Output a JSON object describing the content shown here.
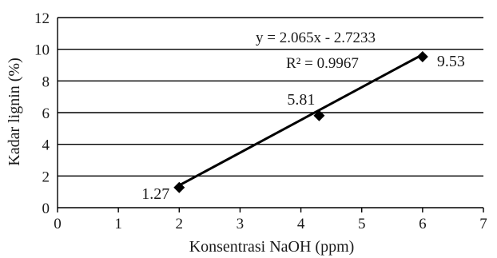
{
  "chart_data": {
    "type": "scatter",
    "xlabel": "Konsentrasi NaOH  (ppm)",
    "ylabel": "Kadar lignin  (%)",
    "xlim": [
      0,
      7
    ],
    "ylim": [
      0,
      12
    ],
    "x_ticks": [
      0,
      1,
      2,
      3,
      4,
      5,
      6,
      7
    ],
    "y_ticks": [
      0,
      2,
      4,
      6,
      8,
      10,
      12
    ],
    "grid": "horizontal",
    "points": [
      {
        "x": 2,
        "y": 1.27,
        "label": "1.27"
      },
      {
        "x": 4.3,
        "y": 5.81,
        "label": "5.81"
      },
      {
        "x": 6,
        "y": 9.53,
        "label": "9.53"
      }
    ],
    "trendline": {
      "slope": 2.065,
      "intercept": -2.7233,
      "x_range": [
        2,
        6
      ]
    },
    "equation": "y = 2.065x - 2.7233",
    "r_squared": "R² = 0.9967"
  }
}
